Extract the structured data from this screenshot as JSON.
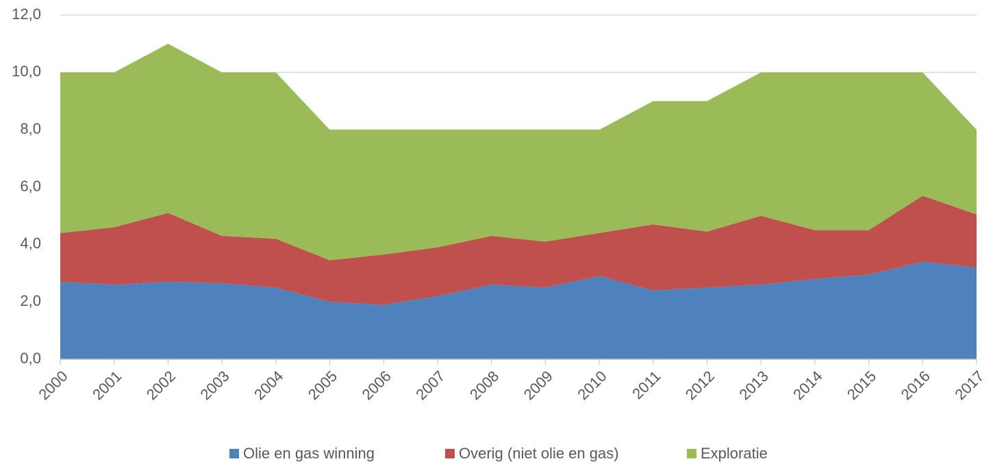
{
  "chart_data": {
    "type": "stacked_area",
    "categories": [
      "2000",
      "2001",
      "2002",
      "2003",
      "2004",
      "2005",
      "2006",
      "2007",
      "2008",
      "2009",
      "2010",
      "2011",
      "2012",
      "2013",
      "2014",
      "2015",
      "2016",
      "2017"
    ],
    "series": [
      {
        "name": "Olie en gas winning",
        "color": "#4f81bd",
        "values": [
          2.7,
          2.6,
          2.7,
          2.65,
          2.5,
          2.0,
          1.9,
          2.2,
          2.6,
          2.5,
          2.9,
          2.4,
          2.5,
          2.6,
          2.8,
          2.95,
          3.4,
          3.2
        ]
      },
      {
        "name": "Overig (niet olie en gas)",
        "color": "#c0504d",
        "values": [
          1.7,
          2.0,
          2.4,
          1.65,
          1.7,
          1.45,
          1.75,
          1.7,
          1.7,
          1.6,
          1.5,
          2.3,
          1.95,
          2.4,
          1.7,
          1.55,
          2.3,
          1.85
        ]
      },
      {
        "name": "Exploratie",
        "color": "#9bbb59",
        "values": [
          5.6,
          5.4,
          5.9,
          5.7,
          5.8,
          4.55,
          4.35,
          4.1,
          3.7,
          3.9,
          3.6,
          4.3,
          4.55,
          5.0,
          5.5,
          5.5,
          4.3,
          2.95
        ]
      }
    ],
    "ylim": [
      0,
      12
    ],
    "yticks": [
      {
        "value": 0,
        "label": "0,0"
      },
      {
        "value": 2,
        "label": "2,0"
      },
      {
        "value": 4,
        "label": "4,0"
      },
      {
        "value": 6,
        "label": "6,0"
      },
      {
        "value": 8,
        "label": "8,0"
      },
      {
        "value": 10,
        "label": "10,0"
      },
      {
        "value": 12,
        "label": "12,0"
      }
    ],
    "grid": true,
    "legend": "bottom"
  }
}
